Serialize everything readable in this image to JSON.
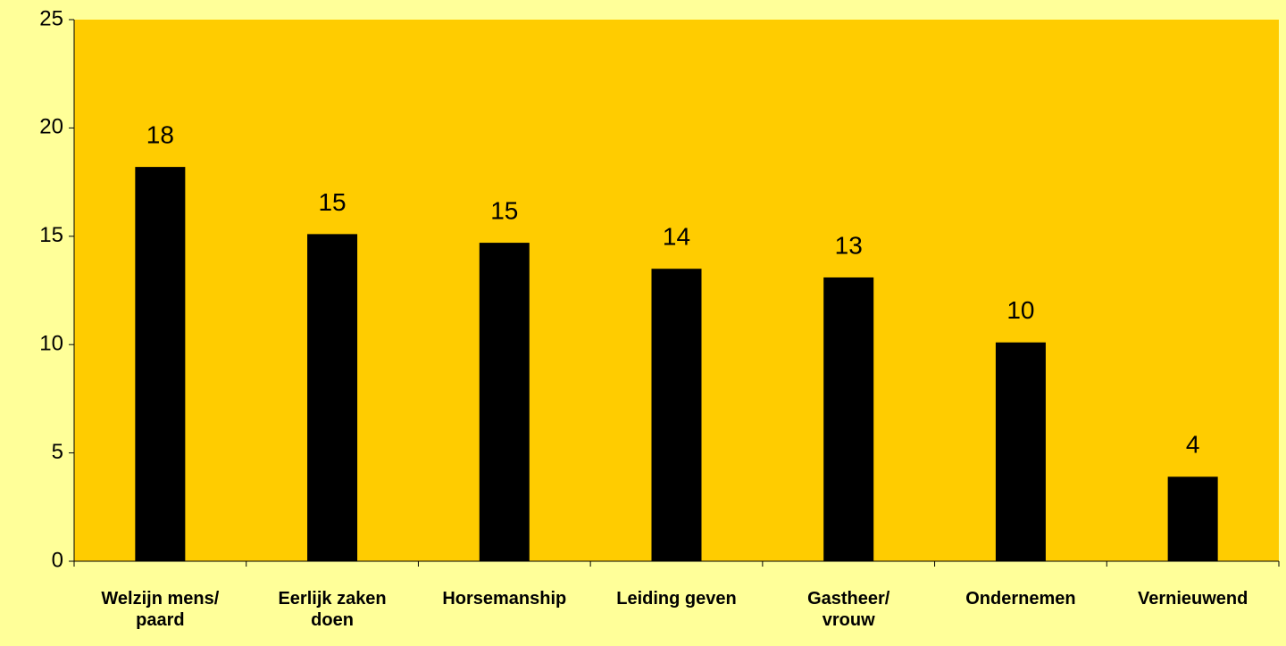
{
  "chart_data": {
    "type": "bar",
    "categories": [
      "Welzijn mens/ paard",
      "Eerlijk zaken doen",
      "Horsemanship",
      "Leiding geven",
      "Gastheer/ vrouw",
      "Ondernemen",
      "Vernieuwend"
    ],
    "values": [
      18.2,
      15.1,
      14.7,
      13.5,
      13.1,
      10.1,
      3.9
    ],
    "value_labels": [
      "18",
      "15",
      "15",
      "14",
      "13",
      "10",
      "4"
    ],
    "color": "#000000",
    "plot_background": "#ffcc00",
    "background": "#ffff99",
    "ylim": [
      0,
      25
    ],
    "yticks": [
      0,
      5,
      10,
      15,
      20,
      25
    ],
    "grid": false
  }
}
